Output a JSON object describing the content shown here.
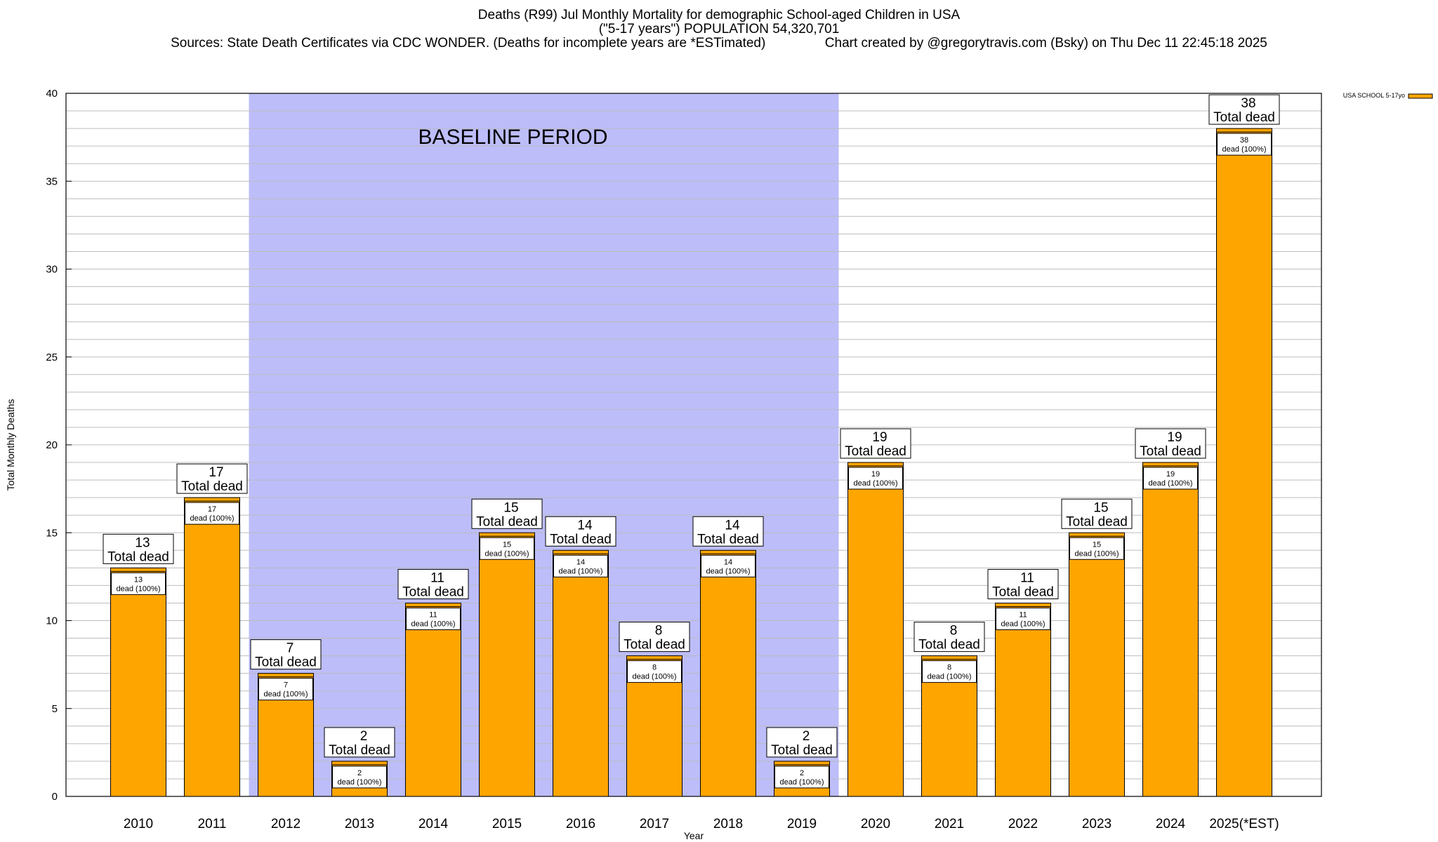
{
  "chart_data": {
    "type": "bar",
    "title_lines": [
      "Deaths (R99) Jul Monthly Mortality for demographic School-aged Children in USA",
      "(\"5-17 years\") POPULATION 54,320,701",
      "Sources: State Death Certificates via CDC WONDER. (Deaths for incomplete years are *ESTimated)                Chart created by @gregorytravis.com (Bsky) on Thu Dec 11 22:45:18 2025"
    ],
    "xlabel": "Year",
    "ylabel": "Total Monthly Deaths",
    "ylim": [
      0,
      40
    ],
    "yticks": [
      0,
      5,
      10,
      15,
      20,
      25,
      30,
      35,
      40
    ],
    "minor_tick_step": 1,
    "grid": true,
    "categories": [
      "2010",
      "2011",
      "2012",
      "2013",
      "2014",
      "2015",
      "2016",
      "2017",
      "2018",
      "2019",
      "2020",
      "2021",
      "2022",
      "2023",
      "2024",
      "2025(*EST)"
    ],
    "series": [
      {
        "name": "USA SCHOOL 5-17yo",
        "color": "#FFA500",
        "values": [
          13,
          17,
          7,
          2,
          11,
          15,
          14,
          8,
          14,
          2,
          19,
          8,
          11,
          15,
          19,
          38
        ],
        "inner_label_suffix": "dead (100%)"
      }
    ],
    "total_label_suffix": "Total dead",
    "legend_position": "top-right",
    "baseline_period": {
      "label": "BASELINE PERIOD",
      "from": "2012",
      "to": "2019",
      "color": "#BDBDFA"
    },
    "colors": {
      "bar": "#FFA500",
      "baseline_shade": "#BDBDFA",
      "grid": "#bdbdbd"
    }
  }
}
